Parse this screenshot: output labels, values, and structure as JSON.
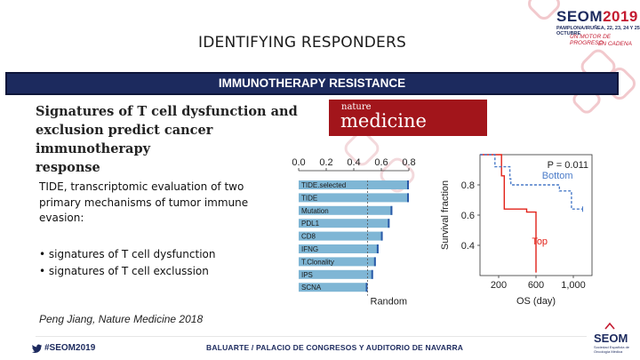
{
  "slide": {
    "title": "IDENTIFYING RESPONDERS",
    "banner": "IMMUNOTHERAPY RESISTANCE",
    "paper_title_lines": [
      "Signatures of T cell dysfunction and",
      "exclusion predict cancer immunotherapy",
      "response"
    ],
    "journal_small": "nature",
    "journal_big": "medicine",
    "description": "TIDE, transcriptomic evaluation of two primary mechanisms of tumor immune evasion:",
    "bullets": [
      "signatures of T cell dysfunction",
      "signatures of T cell exclussion"
    ],
    "citation": "Peng Jiang, Nature Medicine 2018"
  },
  "footer": {
    "hashtag": "#SEOM2019",
    "venue": "BALUARTE / PALACIO DE CONGRESOS Y AUDITORIO DE NAVARRA",
    "org": "SEOM",
    "org_sub": "Sociedad Española de Oncología Médica"
  },
  "logo": {
    "name": "SEOM",
    "year": "2019",
    "dates": "PAMPLONA/IRUÑEA, 22, 23, 24 Y 25 OCTUBRE",
    "slogan1": "UN MOTOR DE PROGRESO",
    "slogan2": "EN CADENA"
  },
  "colors": {
    "navy": "#1c2a5e",
    "journal_red": "#a2151b",
    "bar_blue": "#7fb6d5",
    "top_line": "#e2231a",
    "bottom_line": "#4a7bc8"
  },
  "chart_data": [
    {
      "type": "bar",
      "orientation": "horizontal",
      "categories": [
        "TIDE.selected",
        "TIDE",
        "Mutation",
        "PDL1",
        "CD8",
        "IFNG",
        "T.Clonality",
        "IPS",
        "SCNA"
      ],
      "values": [
        0.8,
        0.8,
        0.68,
        0.66,
        0.61,
        0.58,
        0.56,
        0.54,
        0.5
      ],
      "xlim": [
        0,
        0.8
      ],
      "ticks": [
        "0.0",
        "0.2",
        "0.4",
        "0.6",
        "0.8"
      ],
      "reference_label": "Random",
      "reference_value": 0.5
    },
    {
      "type": "line",
      "xlabel": "OS (day)",
      "ylabel": "Survival fraction",
      "xlim": [
        0,
        1200
      ],
      "ylim": [
        0.2,
        1.0
      ],
      "x_ticks": [
        "200",
        "600",
        "1,000"
      ],
      "y_ticks": [
        "0.8",
        "0.6",
        "0.4"
      ],
      "annotation": "P = 0.011",
      "series": [
        {
          "name": "Top",
          "points": [
            [
              0,
              1.0
            ],
            [
              230,
              1.0
            ],
            [
              230,
              0.86
            ],
            [
              260,
              0.86
            ],
            [
              260,
              0.64
            ],
            [
              500,
              0.64
            ],
            [
              500,
              0.62
            ],
            [
              600,
              0.62
            ],
            [
              600,
              0.22
            ]
          ]
        },
        {
          "name": "Bottom",
          "points": [
            [
              0,
              1.0
            ],
            [
              160,
              1.0
            ],
            [
              160,
              0.92
            ],
            [
              320,
              0.92
            ],
            [
              320,
              0.84
            ],
            [
              330,
              0.84
            ],
            [
              330,
              0.8
            ],
            [
              850,
              0.8
            ],
            [
              850,
              0.76
            ],
            [
              980,
              0.76
            ],
            [
              980,
              0.64
            ],
            [
              1100,
              0.64
            ]
          ]
        }
      ]
    }
  ]
}
